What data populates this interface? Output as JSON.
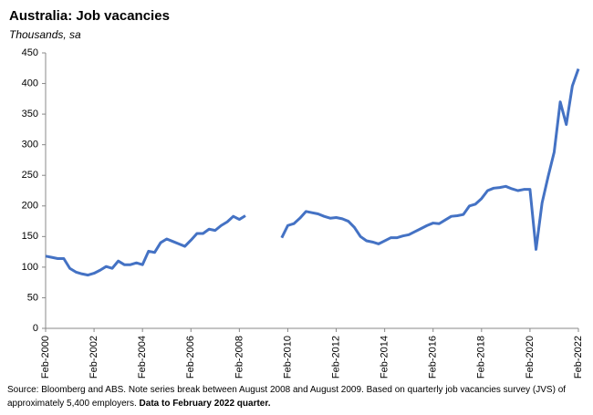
{
  "chart_data": {
    "type": "line",
    "title": "Australia: Job vacancies",
    "subtitle": "Thousands, sa",
    "categories": [
      "Feb-2000",
      null,
      null,
      null,
      null,
      null,
      null,
      null,
      "Feb-2002",
      null,
      null,
      null,
      null,
      null,
      null,
      null,
      "Feb-2004",
      null,
      null,
      null,
      null,
      null,
      null,
      null,
      "Feb-2006",
      null,
      null,
      null,
      null,
      null,
      null,
      null,
      "Feb-2008",
      null,
      null,
      null,
      null,
      null,
      null,
      null,
      "Feb-2010",
      null,
      null,
      null,
      null,
      null,
      null,
      null,
      "Feb-2012",
      null,
      null,
      null,
      null,
      null,
      null,
      null,
      "Feb-2014",
      null,
      null,
      null,
      null,
      null,
      null,
      null,
      "Feb-2016",
      null,
      null,
      null,
      null,
      null,
      null,
      null,
      "Feb-2018",
      null,
      null,
      null,
      null,
      null,
      null,
      null,
      "Feb-2020",
      null,
      null,
      null,
      null,
      null,
      null,
      null,
      "Feb-2022"
    ],
    "series": [
      {
        "color": "#4472c4",
        "values": [
          118,
          116,
          114,
          114,
          98,
          92,
          89,
          87,
          90,
          95,
          101,
          98,
          110,
          104,
          104,
          107,
          104,
          126,
          124,
          140,
          146,
          142,
          138,
          134,
          144,
          155,
          155,
          162,
          160,
          168,
          174,
          183,
          178,
          184,
          null,
          null,
          null,
          null,
          null,
          148,
          168,
          171,
          180,
          191,
          189,
          187,
          183,
          180,
          181,
          179,
          175,
          165,
          150,
          143,
          141,
          138,
          143,
          148,
          148,
          151,
          153,
          158,
          163,
          168,
          172,
          171,
          177,
          183,
          184,
          186,
          200,
          203,
          212,
          225,
          229,
          230,
          232,
          228,
          225,
          227,
          227,
          129,
          205,
          248,
          288,
          370,
          333,
          396,
          424
        ]
      }
    ],
    "ylim": [
      0,
      450
    ],
    "yticks": [
      0,
      50,
      100,
      150,
      200,
      250,
      300,
      350,
      400,
      450
    ],
    "source": "Source: Bloomberg and ABS.  Note series break between August 2008 and August 2009. Based on quarterly job vacancies survey (JVS) of approximately 5,400 employers.",
    "source_bold": "Data to February 2022 quarter."
  }
}
